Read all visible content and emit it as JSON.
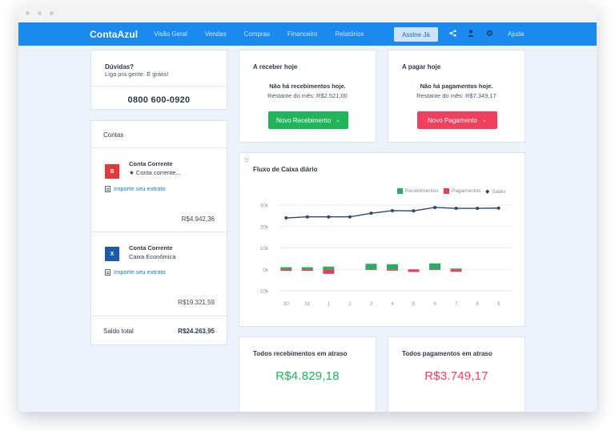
{
  "app": {
    "logo": "ContaAzul",
    "nav": [
      "Visão Geral",
      "Vendas",
      "Compras",
      "Financeiro",
      "Relatórios"
    ],
    "cta_label": "Assine Já",
    "icons": [
      "share-icon",
      "user-icon",
      "settings-icon"
    ],
    "help_label": "Ajuda"
  },
  "help": {
    "title": "Dúvidas?",
    "subtitle": "Liga pra gente. É grátis!",
    "phone": "0800 600-0920"
  },
  "accounts": {
    "heading": "Contas",
    "items": [
      {
        "name": "Conta Corrente",
        "subtitle": "★ Conta corrente...",
        "link": "Importe seu extrato",
        "balance": "R$4.942,36",
        "logo_text": "B",
        "logo_color": "#e53935"
      },
      {
        "name": "Conta Corrente",
        "subtitle": "Caixa Econômica",
        "link": "Importe seu extrato",
        "balance": "R$19.321,59",
        "logo_text": "X",
        "logo_color": "#1d5aa8"
      }
    ],
    "total_label": "Saldo total",
    "total_value": "R$24.263,95"
  },
  "receive_today": {
    "title": "A receber hoje",
    "message": "Não há recebimentos hoje.",
    "remaining": "Restante do mês: R$2.521,00",
    "button": "Novo Recebimento"
  },
  "pay_today": {
    "title": "A pagar hoje",
    "message": "Não há pagamentos hoje.",
    "remaining": "Restante do mês: R$7.349,17",
    "button": "Novo Pagamento"
  },
  "chart_data": {
    "type": "bar",
    "title": "Fluxo de Caixa diário",
    "categories": [
      "30",
      "31",
      "1",
      "2",
      "3",
      "4",
      "5",
      "6",
      "7",
      "8",
      "9"
    ],
    "y_ticks": [
      "30k",
      "20k",
      "10k",
      "0k",
      "-10k"
    ],
    "ylim": [
      -10000,
      30000
    ],
    "legend": [
      "Recebimentos",
      "Pagamentos",
      "Saldo"
    ],
    "series": [
      {
        "name": "Recebimentos",
        "values": [
          1000,
          1000,
          1300,
          0,
          2600,
          2400,
          0,
          2800,
          400,
          0,
          0
        ]
      },
      {
        "name": "Pagamentos",
        "values": [
          -700,
          -700,
          -2100,
          0,
          -300,
          -600,
          -1200,
          -300,
          -1100,
          0,
          0
        ]
      },
      {
        "name": "Saldo",
        "values": [
          24000,
          24500,
          24500,
          24500,
          26200,
          27400,
          27300,
          28900,
          28500,
          28500,
          28600
        ]
      }
    ],
    "colors": {
      "Recebimentos": "#27ae60",
      "Pagamentos": "#e0405a",
      "Saldo": "#2b4a6b"
    }
  },
  "late_receipts": {
    "title": "Todos recebimentos em atraso",
    "value": "R$4.829,18"
  },
  "late_payments": {
    "title": "Todos pagamentos em atraso",
    "value": "R$3.749,17"
  },
  "colors": {
    "brand": "#1a8af0",
    "success": "#20b55a",
    "danger": "#f0405e"
  }
}
